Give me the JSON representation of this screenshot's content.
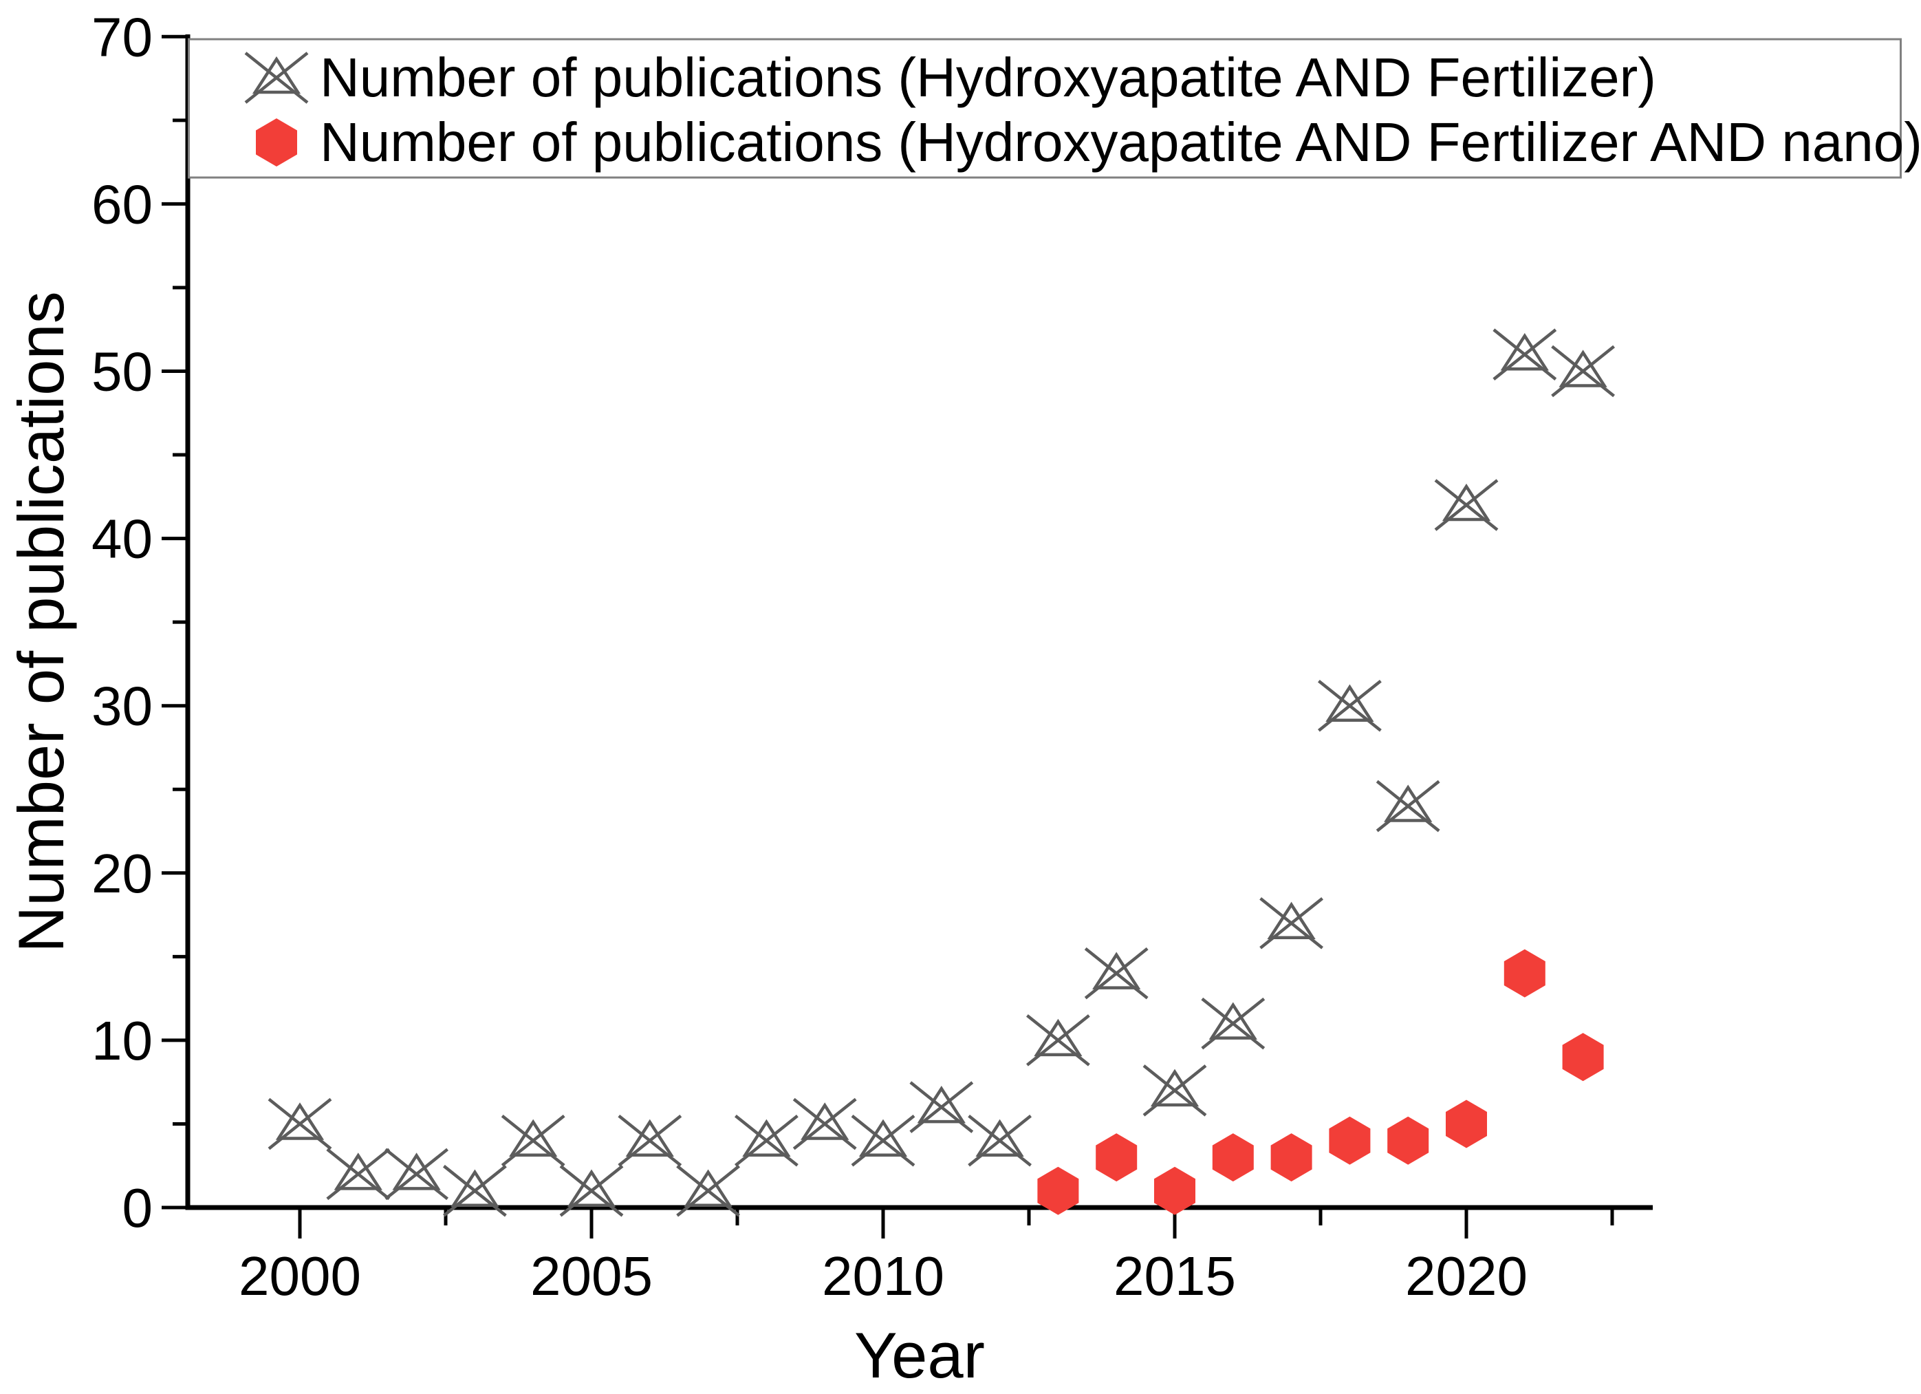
{
  "colors": {
    "series1_marker": "#5c5c5c",
    "series2_marker": "#f23e38",
    "legend_border": "#808080",
    "axis": "#000000",
    "background": "#ffffff"
  },
  "legend": {
    "items": [
      {
        "label": "Number of publications (Hydroxyapatite AND Fertilizer)",
        "marker_icon": "triangle-x-icon",
        "color": "#5c5c5c"
      },
      {
        "label": "Number of publications (Hydroxyapatite AND Fertilizer AND nano)",
        "marker_icon": "hexagon-icon",
        "color": "#f23e38"
      }
    ]
  },
  "chart_data": {
    "type": "scatter",
    "title": "",
    "xlabel": "Year",
    "ylabel": "Number of publications",
    "xlim": [
      1998,
      2023.3
    ],
    "ylim": [
      0,
      70
    ],
    "grid": false,
    "legend_position": "top-inside-box",
    "x_major_ticks": [
      2000,
      2005,
      2010,
      2015,
      2020
    ],
    "x_minor_ticks": [
      2002.5,
      2007.5,
      2012.5,
      2017.5,
      2022.5
    ],
    "y_major_ticks": [
      0,
      10,
      20,
      30,
      40,
      50,
      60,
      70
    ],
    "y_minor_ticks": [
      5,
      15,
      25,
      35,
      45,
      55,
      65
    ],
    "series": [
      {
        "name": "Number of publications (Hydroxyapatite AND Fertilizer)",
        "marker": "triangle-x",
        "color": "#5c5c5c",
        "x": [
          2000,
          2001,
          2002,
          2003,
          2004,
          2005,
          2006,
          2007,
          2008,
          2009,
          2010,
          2011,
          2012,
          2013,
          2014,
          2015,
          2016,
          2017,
          2018,
          2019,
          2020,
          2021,
          2022
        ],
        "y": [
          5,
          2,
          2,
          1,
          4,
          1,
          4,
          1,
          4,
          5,
          4,
          6,
          4,
          10,
          14,
          7,
          11,
          17,
          30,
          24,
          42,
          51,
          50
        ]
      },
      {
        "name": "Number of publications (Hydroxyapatite AND Fertilizer AND nano)",
        "marker": "hexagon",
        "color": "#f23e38",
        "x": [
          2013,
          2014,
          2015,
          2016,
          2017,
          2018,
          2019,
          2020,
          2021,
          2022
        ],
        "y": [
          1,
          3,
          1,
          3,
          3,
          4,
          4,
          5,
          14,
          9
        ]
      }
    ]
  }
}
